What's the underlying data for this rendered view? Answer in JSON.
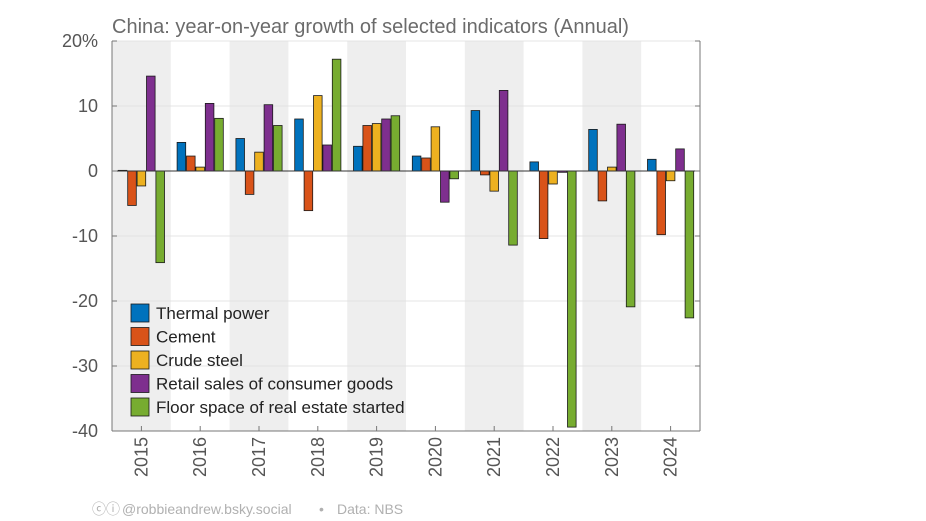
{
  "credit": {
    "cc_icons": "ⓒⓘ",
    "author": "@robbieandrew.bsky.social",
    "separator": "•",
    "source": "Data: NBS"
  },
  "colors": {
    "band": "#eeeeee",
    "axis": "#777777",
    "zero": "#333333",
    "grid": "#dddddd"
  },
  "chart_data": {
    "type": "bar",
    "title": "China: year-on-year growth of selected indicators (Annual)",
    "categories": [
      "2015",
      "2016",
      "2017",
      "2018",
      "2019",
      "2020",
      "2021",
      "2022",
      "2023",
      "2024"
    ],
    "ylim": [
      -40,
      20
    ],
    "yticks": [
      {
        "value": 20,
        "label": "20%"
      },
      {
        "value": 10,
        "label": "10"
      },
      {
        "value": 0,
        "label": "0"
      },
      {
        "value": -10,
        "label": "-10"
      },
      {
        "value": -20,
        "label": "-20"
      },
      {
        "value": -30,
        "label": "-30"
      },
      {
        "value": -40,
        "label": "-40"
      }
    ],
    "shaded_categories": [
      "2015",
      "2017",
      "2019",
      "2021",
      "2023"
    ],
    "legend_position": "bottom-left",
    "series": [
      {
        "name": "Thermal power",
        "color": "#0072BD",
        "values": [
          0.1,
          4.4,
          5.0,
          8.0,
          3.8,
          2.3,
          9.3,
          1.4,
          6.4,
          1.8
        ]
      },
      {
        "name": "Cement",
        "color": "#D95319",
        "values": [
          -5.3,
          2.3,
          -3.6,
          -6.1,
          7.0,
          2.0,
          -0.6,
          -10.4,
          -4.6,
          -9.8
        ]
      },
      {
        "name": "Crude steel",
        "color": "#EDB120",
        "values": [
          -2.3,
          0.6,
          2.9,
          11.6,
          7.3,
          6.8,
          -3.1,
          -2.0,
          0.6,
          -1.5
        ]
      },
      {
        "name": "Retail sales of consumer goods",
        "color": "#7E2F8E",
        "values": [
          14.6,
          10.4,
          10.2,
          4.0,
          8.0,
          -4.8,
          12.4,
          -0.2,
          7.2,
          3.4
        ]
      },
      {
        "name": "Floor space of real estate started",
        "color": "#77AC30",
        "values": [
          -14.1,
          8.1,
          7.0,
          17.2,
          8.5,
          -1.2,
          -11.4,
          -39.4,
          -20.9,
          -22.6
        ]
      }
    ]
  }
}
